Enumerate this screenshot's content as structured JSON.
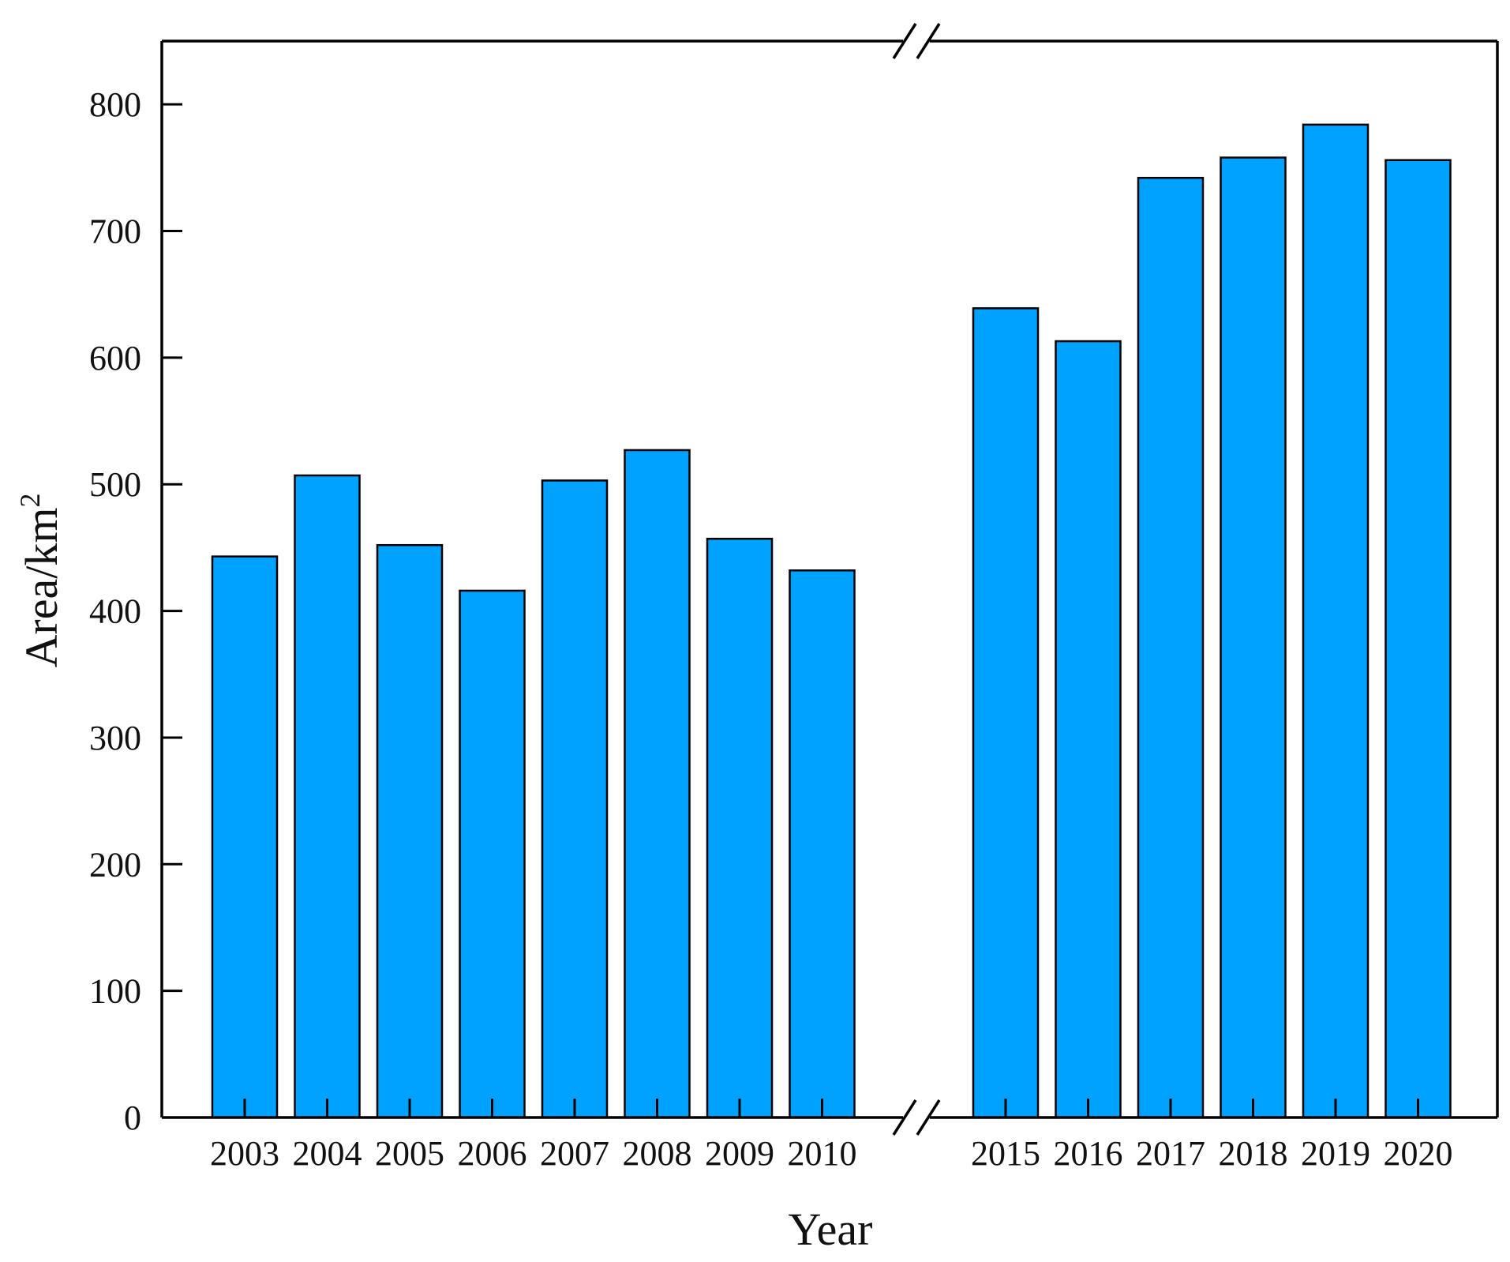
{
  "chart_data": {
    "type": "bar",
    "xlabel": "Year",
    "ylabel": "Area/km",
    "ylabel_superscript": "2",
    "ylim": [
      0,
      850
    ],
    "yticks": [
      0,
      100,
      200,
      300,
      400,
      500,
      600,
      700,
      800
    ],
    "ytick_labels": [
      "0",
      "100",
      "200",
      "300",
      "400",
      "500",
      "600",
      "700",
      "800"
    ],
    "axis_break": "between 2010 and 2015",
    "grid": false,
    "legend": "none",
    "bar_color": "#00A2FF",
    "bar_edge_color": "#000000",
    "segments": [
      {
        "categories": [
          "2003",
          "2004",
          "2005",
          "2006",
          "2007",
          "2008",
          "2009",
          "2010"
        ],
        "values": [
          443,
          507,
          452,
          416,
          503,
          527,
          457,
          432
        ]
      },
      {
        "categories": [
          "2015",
          "2016",
          "2017",
          "2018",
          "2019",
          "2020"
        ],
        "values": [
          639,
          613,
          742,
          758,
          784,
          756
        ]
      }
    ]
  }
}
